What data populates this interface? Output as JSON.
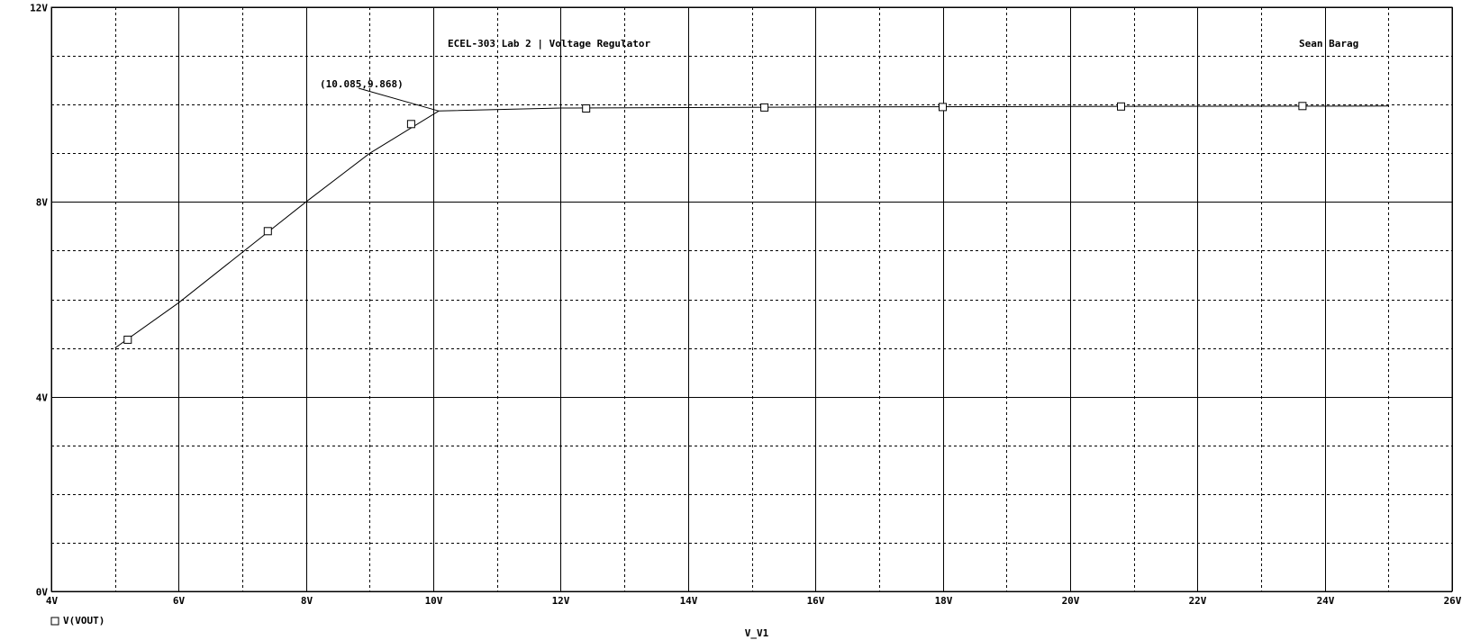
{
  "chart_data": {
    "type": "line",
    "title": "ECEL-303 Lab 2 | Voltage Regulator",
    "author": "Sean Barag",
    "xlabel": "V_V1",
    "ylabel": "",
    "xlim": [
      4,
      26
    ],
    "ylim": [
      0,
      12
    ],
    "x_ticks": [
      {
        "value": 4,
        "label": "4V"
      },
      {
        "value": 6,
        "label": "6V"
      },
      {
        "value": 8,
        "label": "8V"
      },
      {
        "value": 10,
        "label": "10V"
      },
      {
        "value": 12,
        "label": "12V"
      },
      {
        "value": 14,
        "label": "14V"
      },
      {
        "value": 16,
        "label": "16V"
      },
      {
        "value": 18,
        "label": "18V"
      },
      {
        "value": 20,
        "label": "20V"
      },
      {
        "value": 22,
        "label": "22V"
      },
      {
        "value": 24,
        "label": "24V"
      },
      {
        "value": 26,
        "label": "26V"
      }
    ],
    "y_ticks": [
      {
        "value": 0,
        "label": "0V"
      },
      {
        "value": 4,
        "label": "4V"
      },
      {
        "value": 8,
        "label": "8V"
      },
      {
        "value": 12,
        "label": "12V"
      }
    ],
    "grid": true,
    "legend_position": "bottom-left",
    "series": [
      {
        "name": "V(VOUT)",
        "marker": "square",
        "x": [
          5.0,
          6.0,
          8.0,
          9.0,
          10.085,
          12.0,
          16.0,
          20.0,
          25.0
        ],
        "y": [
          5.0,
          5.93,
          8.0,
          9.0,
          9.868,
          9.93,
          9.95,
          9.96,
          9.97
        ],
        "markers_x": [
          5.2,
          7.4,
          9.65,
          12.4,
          15.2,
          18.0,
          20.8,
          23.65
        ],
        "markers_y": [
          5.17,
          7.4,
          9.6,
          9.92,
          9.94,
          9.95,
          9.96,
          9.97
        ]
      }
    ],
    "annotations": [
      {
        "label": "(10.085,9.868)",
        "x": 10.085,
        "y": 9.868
      }
    ]
  }
}
